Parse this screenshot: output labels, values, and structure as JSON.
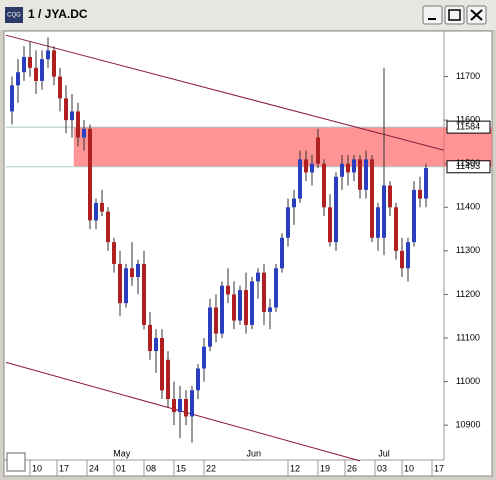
{
  "window_title": "1 / JYA.DC",
  "app_icon": "CQG",
  "chart_data": {
    "type": "candlestick",
    "up_color": "#2a3fbf",
    "down_color": "#b02020",
    "wick_color": "#333333",
    "xlim": [
      0,
      73
    ],
    "ylim": [
      10820,
      11800
    ],
    "yticks": [
      10900,
      11000,
      11100,
      11200,
      11300,
      11400,
      11500,
      11600,
      11700
    ],
    "xticks": [
      {
        "value": 4,
        "label": "10"
      },
      {
        "value": 8.5,
        "label": "17"
      },
      {
        "value": 13.5,
        "label": "24"
      },
      {
        "value": 18,
        "label": "01"
      },
      {
        "value": 23,
        "label": "08"
      },
      {
        "value": 28,
        "label": "15"
      },
      {
        "value": 33,
        "label": "22"
      },
      {
        "value": 47,
        "label": "12"
      },
      {
        "value": 52,
        "label": "19"
      },
      {
        "value": 56.5,
        "label": "26"
      },
      {
        "value": 61.5,
        "label": "03"
      },
      {
        "value": 66,
        "label": "10"
      },
      {
        "value": 71,
        "label": "17"
      }
    ],
    "month_ticks": [
      {
        "value": 19.3,
        "label": "May"
      },
      {
        "value": 41.3,
        "label": "Jun"
      },
      {
        "value": 63,
        "label": "Jul"
      }
    ],
    "price_markers": [
      11584,
      11493
    ],
    "band": {
      "x0": 11.3,
      "y": [
        11493,
        11584
      ],
      "color": "#ff6666"
    },
    "trendlines": [
      {
        "color": "#8b1a3a",
        "x": [
          0,
          73
        ],
        "y": [
          11795,
          11531
        ]
      },
      {
        "color": "#8b1a3a",
        "x": [
          0,
          59
        ],
        "y": [
          11044,
          10818
        ]
      }
    ],
    "x": [
      1,
      2,
      3,
      4,
      5,
      6,
      7,
      8,
      9,
      10,
      11,
      12,
      13,
      14,
      15,
      16,
      17,
      18,
      19,
      20,
      21,
      22,
      23,
      24,
      25,
      26,
      27,
      28,
      29,
      30,
      31,
      32,
      33,
      34,
      35,
      36,
      37,
      38,
      39,
      40,
      41,
      42,
      43,
      44,
      45,
      46,
      47,
      48,
      49,
      50,
      51,
      52,
      53,
      54,
      55,
      56,
      57,
      58,
      59,
      60,
      61,
      62,
      63,
      64,
      65,
      66,
      67,
      68,
      69,
      70
    ],
    "open": [
      11620,
      11680,
      11710,
      11745,
      11720,
      11690,
      11740,
      11760,
      11700,
      11650,
      11600,
      11620,
      11560,
      11580,
      11370,
      11410,
      11390,
      11320,
      11270,
      11180,
      11260,
      11240,
      11270,
      11130,
      11070,
      11100,
      11050,
      10960,
      10930,
      10960,
      10920,
      10980,
      11030,
      11080,
      11170,
      11110,
      11220,
      11200,
      11140,
      11210,
      11130,
      11230,
      11250,
      11160,
      11170,
      11260,
      11330,
      11400,
      11420,
      11510,
      11480,
      11560,
      11500,
      11400,
      11320,
      11470,
      11500,
      11480,
      11510,
      11440,
      11510,
      11330,
      11330,
      11450,
      11400,
      11300,
      11260,
      11320,
      11440,
      11420
    ],
    "high": [
      11700,
      11740,
      11770,
      11780,
      11760,
      11760,
      11790,
      11770,
      11720,
      11680,
      11660,
      11640,
      11600,
      11590,
      11420,
      11440,
      11400,
      11330,
      11300,
      11270,
      11320,
      11280,
      11300,
      11160,
      11120,
      11120,
      11070,
      11000,
      10990,
      10980,
      10990,
      11040,
      11100,
      11190,
      11200,
      11230,
      11260,
      11230,
      11220,
      11250,
      11240,
      11260,
      11270,
      11190,
      11270,
      11340,
      11420,
      11440,
      11530,
      11530,
      11520,
      11580,
      11510,
      11430,
      11480,
      11520,
      11520,
      11520,
      11520,
      11530,
      11520,
      11410,
      11720,
      11460,
      11410,
      11330,
      11330,
      11460,
      11470,
      11500
    ],
    "low": [
      11590,
      11640,
      11690,
      11700,
      11660,
      11670,
      11720,
      11680,
      11620,
      11570,
      11560,
      11540,
      11530,
      11350,
      11350,
      11380,
      11300,
      11250,
      11150,
      11170,
      11220,
      11200,
      11120,
      11050,
      11020,
      10960,
      10940,
      10900,
      10870,
      10900,
      10860,
      10960,
      11000,
      11070,
      11090,
      11100,
      11180,
      11120,
      11130,
      11110,
      11120,
      11190,
      11130,
      11120,
      11160,
      11250,
      11310,
      11360,
      11410,
      11460,
      11450,
      11490,
      11380,
      11310,
      11300,
      11440,
      11450,
      11460,
      11420,
      11420,
      11320,
      11300,
      11290,
      11380,
      11280,
      11240,
      11230,
      11310,
      11400,
      11400
    ],
    "close": [
      11680,
      11710,
      11745,
      11720,
      11690,
      11740,
      11760,
      11700,
      11650,
      11600,
      11620,
      11560,
      11580,
      11370,
      11410,
      11390,
      11320,
      11270,
      11180,
      11260,
      11240,
      11270,
      11130,
      11070,
      11100,
      10980,
      10960,
      10930,
      10960,
      10920,
      10980,
      11030,
      11080,
      11170,
      11110,
      11220,
      11200,
      11140,
      11210,
      11130,
      11230,
      11250,
      11160,
      11170,
      11260,
      11330,
      11400,
      11420,
      11510,
      11480,
      11500,
      11500,
      11400,
      11320,
      11470,
      11500,
      11480,
      11510,
      11440,
      11510,
      11330,
      11400,
      11450,
      11400,
      11300,
      11260,
      11320,
      11440,
      11420,
      11490
    ]
  }
}
